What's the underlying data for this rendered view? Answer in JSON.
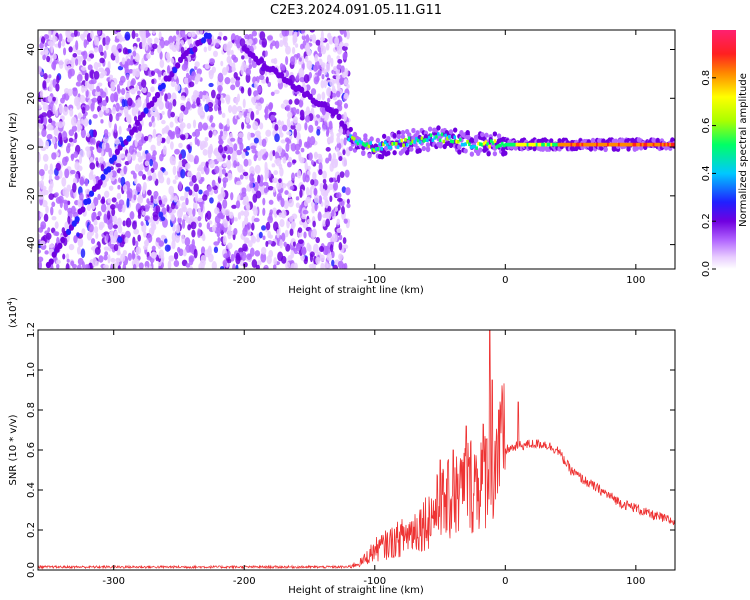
{
  "title": "C2E3.2024.091.05.11.G11",
  "colors": {
    "line": "#ee3333",
    "axis": "#000000",
    "colormap": [
      "#ffffff",
      "#e8ccff",
      "#b266ff",
      "#7000e0",
      "#2020ff",
      "#00c8ff",
      "#00ff66",
      "#aaff00",
      "#ffff00",
      "#ff8800",
      "#ff2020",
      "#ff2070"
    ]
  },
  "chart_data": [
    {
      "type": "heatmap",
      "title": "C2E3.2024.091.05.11.G11",
      "xlabel": "Height of straight line (km)",
      "ylabel": "Frequency (Hz)",
      "xlim": [
        -358,
        130
      ],
      "ylim": [
        -50,
        48
      ],
      "x_ticks": [
        -300,
        -200,
        -100,
        0,
        100
      ],
      "y_ticks": [
        -40,
        -20,
        0,
        20,
        40
      ],
      "colorbar": {
        "label": "Normalized spectral amplitude",
        "range": [
          0,
          1
        ],
        "ticks": [
          "0.0",
          "0.2",
          "0.4",
          "0.6",
          "0.8"
        ]
      },
      "features": {
        "noise_region_x": [
          -358,
          -120
        ],
        "diagonal_trace": [
          [
            -350,
            -48
          ],
          [
            -300,
            -5
          ],
          [
            -250,
            35
          ],
          [
            -225,
            47
          ]
        ],
        "descending_trace": [
          [
            -200,
            40
          ],
          [
            -160,
            24
          ],
          [
            -130,
            14
          ],
          [
            -120,
            6
          ]
        ],
        "carrier_band": [
          [
            -120,
            4
          ],
          [
            -100,
            0
          ],
          [
            -75,
            2
          ],
          [
            -50,
            4
          ],
          [
            -25,
            1
          ],
          [
            0,
            1
          ],
          [
            50,
            1
          ],
          [
            100,
            1
          ],
          [
            130,
            1
          ]
        ],
        "grid": false
      }
    },
    {
      "type": "line",
      "xlabel": "Height of straight line (km)",
      "ylabel": "SNR (10 * v/v)",
      "y_scale_note": "(x10",
      "y_scale_exp": "4",
      "y_scale_close": ")",
      "xlim": [
        -358,
        130
      ],
      "ylim": [
        0,
        1.2
      ],
      "x_ticks": [
        -300,
        -200,
        -100,
        0,
        100
      ],
      "y_ticks": [
        "0.0",
        "0.2",
        "0.4",
        "0.6",
        "0.8",
        "1.0",
        "1.2"
      ],
      "y_tick_values": [
        0,
        0.2,
        0.4,
        0.6,
        0.8,
        1.0,
        1.2
      ],
      "grid": false,
      "series": [
        {
          "x": [
            -358,
            -120,
            -110,
            -100,
            -90,
            -80,
            -70,
            -60,
            -50,
            -40,
            -30,
            -20,
            -15,
            -10,
            -5,
            0,
            10,
            20,
            30,
            40,
            50,
            60,
            70,
            80,
            90,
            100,
            110,
            120,
            130
          ],
          "y": [
            0.015,
            0.015,
            0.04,
            0.1,
            0.13,
            0.16,
            0.2,
            0.25,
            0.32,
            0.36,
            0.42,
            0.45,
            0.5,
            0.55,
            0.58,
            0.6,
            0.62,
            0.63,
            0.63,
            0.6,
            0.5,
            0.45,
            0.41,
            0.37,
            0.33,
            0.31,
            0.28,
            0.26,
            0.24
          ],
          "peaks": [
            [
              -12,
              1.2
            ],
            [
              -10,
              0.95
            ],
            [
              -5,
              0.8
            ],
            [
              10,
              0.84
            ],
            [
              -40,
              0.6
            ],
            [
              -30,
              0.72
            ],
            [
              -50,
              0.55
            ]
          ]
        }
      ]
    }
  ]
}
